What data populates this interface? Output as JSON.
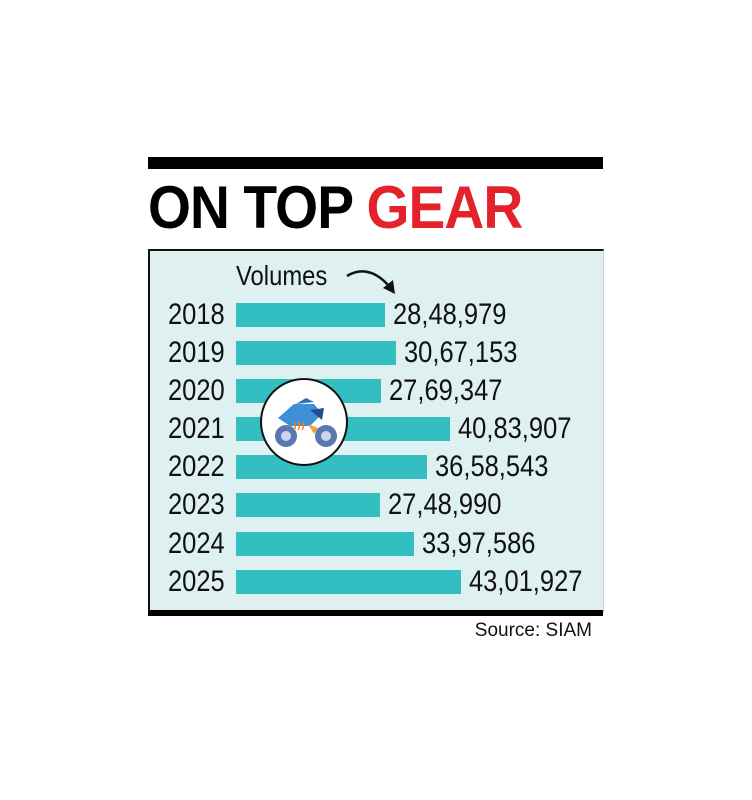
{
  "header": {
    "title_black": "ON TOP",
    "title_red": "GEAR",
    "accent_color": "#e3222b",
    "bar_color": "#33bfc2"
  },
  "chart": {
    "volumes_label": "Volumes",
    "source": "Source: SIAM",
    "icon": "motorcycle-icon"
  },
  "rows": [
    {
      "year": "2018",
      "value": "28,48,979"
    },
    {
      "year": "2019",
      "value": "30,67,153"
    },
    {
      "year": "2020",
      "value": "27,69,347"
    },
    {
      "year": "2021",
      "value": "40,83,907"
    },
    {
      "year": "2022",
      "value": "36,58,543"
    },
    {
      "year": "2023",
      "value": "27,48,990"
    },
    {
      "year": "2024",
      "value": "33,97,586"
    },
    {
      "year": "2025",
      "value": "43,01,927"
    }
  ],
  "chart_data": {
    "type": "bar",
    "orientation": "horizontal",
    "title": "ON TOP GEAR",
    "categories": [
      "2018",
      "2019",
      "2020",
      "2021",
      "2022",
      "2023",
      "2024",
      "2025"
    ],
    "values": [
      2848979,
      3067153,
      2769347,
      4083907,
      3658543,
      2748990,
      3397586,
      4301927
    ],
    "value_labels": [
      "28,48,979",
      "30,67,153",
      "27,69,347",
      "40,83,907",
      "36,58,543",
      "27,48,990",
      "33,97,586",
      "43,01,927"
    ],
    "xlabel": "Volumes",
    "ylabel": "",
    "source": "Source: SIAM",
    "grid": false,
    "legend": null
  }
}
